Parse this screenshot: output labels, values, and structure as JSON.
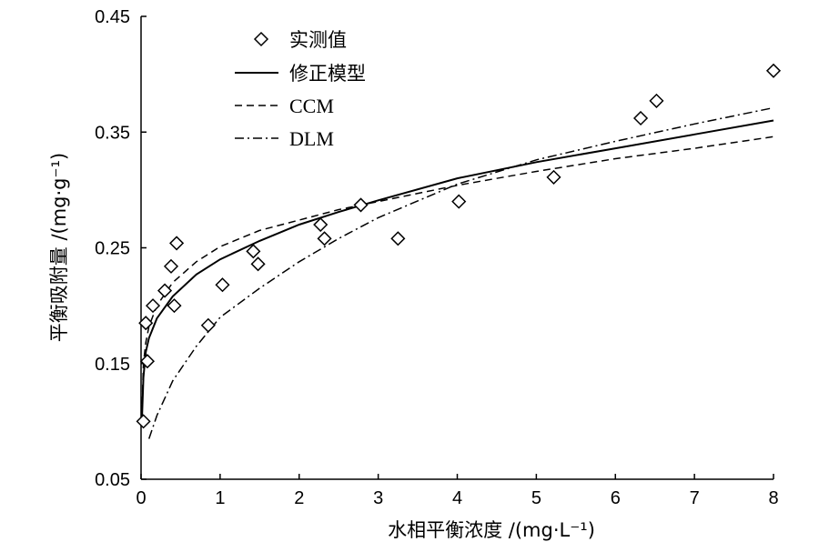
{
  "chart_data": {
    "type": "scatter",
    "xlabel": "水相平衡浓度 /(mg·L⁻¹)",
    "ylabel": "平衡吸附量 /(mg·g⁻¹)",
    "xlim": [
      0,
      8
    ],
    "ylim": [
      0.05,
      0.45
    ],
    "x_ticks": [
      0,
      1,
      2,
      3,
      4,
      5,
      6,
      7,
      8
    ],
    "y_ticks": [
      0.05,
      0.15,
      0.25,
      0.35,
      0.45
    ],
    "x_tick_labels": [
      "0",
      "1",
      "2",
      "3",
      "4",
      "5",
      "6",
      "7",
      "8"
    ],
    "y_tick_labels": [
      "0.05",
      "0.15",
      "0.25",
      "0.35",
      "0.45"
    ],
    "grid": false,
    "legend_position": "top-left",
    "series": [
      {
        "name": "实测值",
        "kind": "markers",
        "marker": "diamond",
        "points": [
          [
            0.03,
            0.1
          ],
          [
            0.06,
            0.185
          ],
          [
            0.08,
            0.152
          ],
          [
            0.15,
            0.2
          ],
          [
            0.3,
            0.213
          ],
          [
            0.38,
            0.234
          ],
          [
            0.42,
            0.2
          ],
          [
            0.45,
            0.254
          ],
          [
            0.85,
            0.183
          ],
          [
            1.03,
            0.218
          ],
          [
            1.42,
            0.247
          ],
          [
            1.48,
            0.236
          ],
          [
            2.27,
            0.27
          ],
          [
            2.32,
            0.258
          ],
          [
            2.78,
            0.287
          ],
          [
            3.25,
            0.258
          ],
          [
            4.02,
            0.29
          ],
          [
            5.22,
            0.311
          ],
          [
            6.32,
            0.362
          ],
          [
            6.52,
            0.377
          ],
          [
            8.0,
            0.403
          ]
        ]
      },
      {
        "name": "修正模型",
        "kind": "line",
        "dash": "solid",
        "points": [
          [
            0.01,
            0.1
          ],
          [
            0.03,
            0.138
          ],
          [
            0.06,
            0.16
          ],
          [
            0.1,
            0.172
          ],
          [
            0.2,
            0.189
          ],
          [
            0.4,
            0.208
          ],
          [
            0.7,
            0.227
          ],
          [
            1.0,
            0.24
          ],
          [
            1.5,
            0.256
          ],
          [
            2.0,
            0.27
          ],
          [
            2.5,
            0.281
          ],
          [
            3.0,
            0.291
          ],
          [
            4.0,
            0.31
          ],
          [
            5.0,
            0.324
          ],
          [
            6.0,
            0.336
          ],
          [
            7.0,
            0.348
          ],
          [
            8.0,
            0.36
          ]
        ]
      },
      {
        "name": "CCM",
        "kind": "line",
        "dash": "dashed",
        "points": [
          [
            0.01,
            0.105
          ],
          [
            0.03,
            0.15
          ],
          [
            0.06,
            0.168
          ],
          [
            0.1,
            0.182
          ],
          [
            0.2,
            0.2
          ],
          [
            0.4,
            0.22
          ],
          [
            0.7,
            0.238
          ],
          [
            1.0,
            0.251
          ],
          [
            1.5,
            0.265
          ],
          [
            2.0,
            0.274
          ],
          [
            2.5,
            0.283
          ],
          [
            3.0,
            0.29
          ],
          [
            4.0,
            0.304
          ],
          [
            5.0,
            0.316
          ],
          [
            6.0,
            0.327
          ],
          [
            7.0,
            0.336
          ],
          [
            8.0,
            0.346
          ]
        ]
      },
      {
        "name": "DLM",
        "kind": "line",
        "dash": "dashdot",
        "points": [
          [
            0.1,
            0.085
          ],
          [
            0.2,
            0.105
          ],
          [
            0.4,
            0.135
          ],
          [
            0.7,
            0.165
          ],
          [
            1.0,
            0.19
          ],
          [
            1.5,
            0.215
          ],
          [
            2.0,
            0.238
          ],
          [
            2.5,
            0.258
          ],
          [
            3.0,
            0.276
          ],
          [
            4.0,
            0.305
          ],
          [
            5.0,
            0.326
          ],
          [
            6.0,
            0.342
          ],
          [
            7.0,
            0.357
          ],
          [
            8.0,
            0.371
          ]
        ]
      }
    ]
  }
}
